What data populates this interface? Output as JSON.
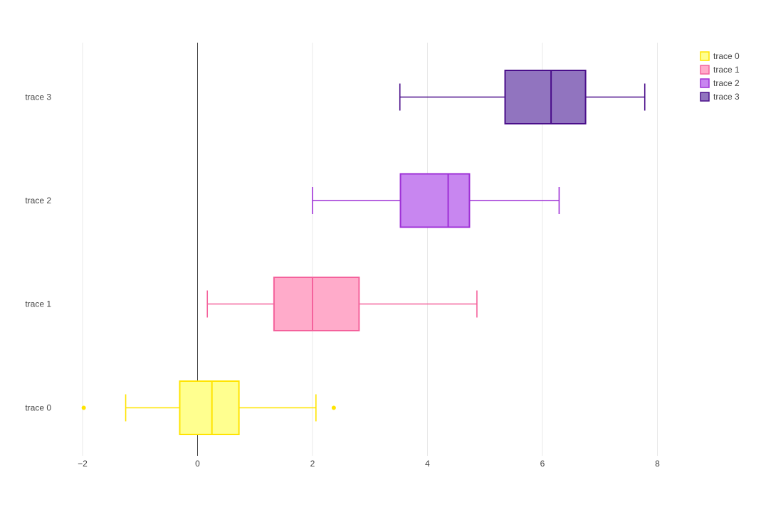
{
  "chart_data": {
    "type": "box",
    "orientation": "horizontal",
    "title": "",
    "xlabel": "",
    "ylabel": "",
    "xlim": [
      -2.7,
      9.5
    ],
    "x_ticks": [
      -2,
      0,
      2,
      4,
      6,
      8
    ],
    "x_tick_labels": [
      "−2",
      "0",
      "2",
      "4",
      "6",
      "8"
    ],
    "grid": true,
    "zeroline": true,
    "legend_position": "top-right",
    "categories": [
      "trace 0",
      "trace 1",
      "trace 2",
      "trace 3"
    ],
    "series": [
      {
        "name": "trace 0",
        "line_color": "#ffe400",
        "fill_color": "#ffff8f",
        "whisker_low": -1.25,
        "q1": -0.31,
        "median": 0.25,
        "q3": 0.72,
        "whisker_high": 2.06,
        "outliers": [
          -1.98,
          2.37
        ]
      },
      {
        "name": "trace 1",
        "line_color": "#f4629c",
        "fill_color": "#ffabca",
        "whisker_low": 0.17,
        "q1": 1.33,
        "median": 2.0,
        "q3": 2.81,
        "whisker_high": 4.86,
        "outliers": []
      },
      {
        "name": "trace 2",
        "line_color": "#9e30d6",
        "fill_color": "#c886f0",
        "whisker_low": 2.0,
        "q1": 3.53,
        "median": 4.36,
        "q3": 4.73,
        "whisker_high": 6.29,
        "outliers": []
      },
      {
        "name": "trace 3",
        "line_color": "#4a0e8a",
        "fill_color": "#9174bf",
        "whisker_low": 3.52,
        "q1": 5.35,
        "median": 6.15,
        "q3": 6.75,
        "whisker_high": 7.78,
        "outliers": []
      }
    ],
    "colors": {
      "grid": "#e8e8e8",
      "zeroline": "#444444",
      "tick_text": "#444444",
      "background": "#ffffff"
    }
  },
  "legend": {
    "items": [
      "trace 0",
      "trace 1",
      "trace 2",
      "trace 3"
    ]
  }
}
